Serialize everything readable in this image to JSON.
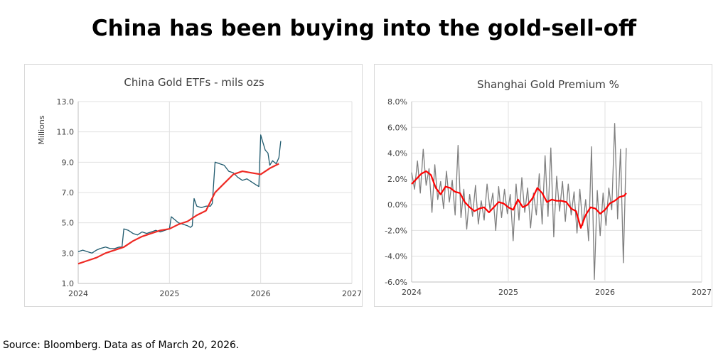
{
  "page": {
    "title": "China has been buying into the gold-sell-off",
    "source": "Source: Bloomberg. Data as of March 20, 2026."
  },
  "colors": {
    "etf_line": "#1f5a6e",
    "ma_line": "#ee2a24",
    "premium_line": "#7f7f7f",
    "premium_ma": "#ff0000"
  },
  "chart_data": [
    {
      "type": "line",
      "title": "China Gold ETFs - mils ozs",
      "xlabel": "",
      "ylabel": "Millions",
      "xlim": [
        2024,
        2027
      ],
      "ylim": [
        1.0,
        13.0
      ],
      "x_ticks": [
        "2024",
        "2025",
        "2026",
        "2027"
      ],
      "y_ticks": [
        "1.0",
        "3.0",
        "5.0",
        "7.0",
        "9.0",
        "11.0",
        "13.0"
      ],
      "grid": true,
      "series": [
        {
          "color": "#1f5a6e",
          "x": [
            2024.0,
            2024.05,
            2024.1,
            2024.15,
            2024.2,
            2024.24,
            2024.3,
            2024.35,
            2024.4,
            2024.45,
            2024.48,
            2024.5,
            2024.55,
            2024.6,
            2024.65,
            2024.7,
            2024.75,
            2024.8,
            2024.85,
            2024.9,
            2024.95,
            2025.0,
            2025.02,
            2025.06,
            2025.1,
            2025.15,
            2025.2,
            2025.23,
            2025.25,
            2025.27,
            2025.3,
            2025.35,
            2025.4,
            2025.45,
            2025.47,
            2025.5,
            2025.55,
            2025.6,
            2025.65,
            2025.7,
            2025.75,
            2025.8,
            2025.85,
            2025.9,
            2025.95,
            2025.98,
            2026.0,
            2026.02,
            2026.05,
            2026.08,
            2026.1,
            2026.13,
            2026.17,
            2026.2,
            2026.22
          ],
          "values": [
            3.1,
            3.2,
            3.1,
            3.0,
            3.2,
            3.3,
            3.4,
            3.3,
            3.3,
            3.4,
            3.4,
            4.6,
            4.5,
            4.3,
            4.2,
            4.4,
            4.3,
            4.4,
            4.5,
            4.4,
            4.5,
            4.6,
            5.4,
            5.2,
            5.0,
            4.9,
            4.8,
            4.7,
            4.8,
            6.6,
            6.1,
            6.0,
            6.1,
            6.1,
            6.3,
            9.0,
            8.9,
            8.8,
            8.4,
            8.3,
            8.0,
            7.8,
            7.9,
            7.7,
            7.5,
            7.4,
            10.8,
            10.4,
            9.8,
            9.6,
            8.8,
            9.1,
            8.9,
            9.3,
            10.4
          ]
        },
        {
          "color": "#ee2a24",
          "x": [
            2024.0,
            2024.1,
            2024.2,
            2024.3,
            2024.4,
            2024.5,
            2024.6,
            2024.7,
            2024.8,
            2024.9,
            2025.0,
            2025.1,
            2025.2,
            2025.3,
            2025.4,
            2025.5,
            2025.6,
            2025.7,
            2025.8,
            2025.9,
            2026.0,
            2026.1,
            2026.2
          ],
          "values": [
            2.3,
            2.5,
            2.7,
            3.0,
            3.2,
            3.4,
            3.8,
            4.1,
            4.3,
            4.5,
            4.6,
            4.9,
            5.1,
            5.5,
            5.8,
            7.0,
            7.6,
            8.2,
            8.4,
            8.3,
            8.2,
            8.6,
            8.9
          ]
        }
      ]
    },
    {
      "type": "line",
      "title": "Shanghai Gold Premium %",
      "xlabel": "",
      "ylabel": "",
      "xlim": [
        2024,
        2027
      ],
      "ylim": [
        -6.0,
        8.0
      ],
      "x_ticks": [
        "2024",
        "2025",
        "2026",
        "2027"
      ],
      "y_ticks": [
        "-6.0%",
        "-4.0%",
        "-2.0%",
        "0.0%",
        "2.0%",
        "4.0%",
        "6.0%",
        "8.0%"
      ],
      "grid": true,
      "series": [
        {
          "color": "#7f7f7f",
          "x": [
            2024.0,
            2024.03,
            2024.06,
            2024.09,
            2024.12,
            2024.15,
            2024.18,
            2024.21,
            2024.24,
            2024.27,
            2024.3,
            2024.33,
            2024.36,
            2024.39,
            2024.42,
            2024.45,
            2024.48,
            2024.51,
            2024.54,
            2024.57,
            2024.6,
            2024.63,
            2024.66,
            2024.69,
            2024.72,
            2024.75,
            2024.78,
            2024.81,
            2024.84,
            2024.87,
            2024.9,
            2024.93,
            2024.96,
            2024.99,
            2025.02,
            2025.05,
            2025.08,
            2025.11,
            2025.14,
            2025.17,
            2025.2,
            2025.23,
            2025.26,
            2025.29,
            2025.32,
            2025.35,
            2025.38,
            2025.41,
            2025.44,
            2025.47,
            2025.5,
            2025.53,
            2025.56,
            2025.59,
            2025.62,
            2025.65,
            2025.68,
            2025.71,
            2025.74,
            2025.77,
            2025.8,
            2025.83,
            2025.86,
            2025.89,
            2025.92,
            2025.95,
            2025.98,
            2026.01,
            2026.04,
            2026.07,
            2026.1,
            2026.13,
            2026.16,
            2026.19,
            2026.22
          ],
          "values": [
            2.5,
            1.2,
            3.4,
            0.9,
            4.3,
            1.5,
            2.8,
            -0.6,
            3.1,
            0.4,
            1.8,
            -0.3,
            2.6,
            0.2,
            1.9,
            -0.8,
            4.6,
            -1.0,
            1.2,
            -1.9,
            0.8,
            -0.9,
            1.5,
            -1.5,
            0.3,
            -1.2,
            1.6,
            -0.4,
            0.9,
            -2.0,
            1.4,
            -1.0,
            1.2,
            -0.7,
            0.8,
            -2.8,
            1.6,
            -1.2,
            2.1,
            -0.6,
            1.3,
            -1.8,
            0.9,
            -0.8,
            2.4,
            -1.5,
            3.8,
            -0.9,
            4.4,
            -2.5,
            2.2,
            -0.5,
            1.8,
            -1.3,
            1.6,
            -0.8,
            1.0,
            -2.2,
            1.2,
            -1.6,
            0.4,
            -2.8,
            4.5,
            -5.8,
            1.1,
            -2.4,
            0.9,
            -1.6,
            1.3,
            -0.4,
            6.3,
            -1.1,
            4.3,
            -4.5,
            4.4
          ]
        },
        {
          "color": "#ff0000",
          "x": [
            2024.0,
            2024.05,
            2024.1,
            2024.15,
            2024.2,
            2024.25,
            2024.3,
            2024.35,
            2024.4,
            2024.45,
            2024.5,
            2024.55,
            2024.6,
            2024.65,
            2024.7,
            2024.75,
            2024.8,
            2024.85,
            2024.9,
            2024.95,
            2025.0,
            2025.05,
            2025.1,
            2025.15,
            2025.2,
            2025.25,
            2025.3,
            2025.35,
            2025.4,
            2025.45,
            2025.5,
            2025.55,
            2025.6,
            2025.65,
            2025.7,
            2025.75,
            2025.8,
            2025.85,
            2025.9,
            2025.95,
            2026.0,
            2026.05,
            2026.1,
            2026.15,
            2026.2,
            2026.22
          ],
          "values": [
            1.6,
            2.0,
            2.4,
            2.6,
            2.3,
            1.3,
            0.8,
            1.4,
            1.3,
            1.0,
            0.9,
            0.2,
            -0.2,
            -0.5,
            -0.3,
            -0.2,
            -0.6,
            -0.2,
            0.2,
            0.1,
            -0.2,
            -0.4,
            0.4,
            -0.2,
            0.0,
            0.5,
            1.3,
            0.9,
            0.2,
            0.4,
            0.3,
            0.3,
            0.2,
            -0.3,
            -0.5,
            -1.8,
            -0.8,
            -0.2,
            -0.3,
            -0.7,
            -0.4,
            0.1,
            0.3,
            0.6,
            0.7,
            0.9
          ]
        }
      ]
    }
  ]
}
